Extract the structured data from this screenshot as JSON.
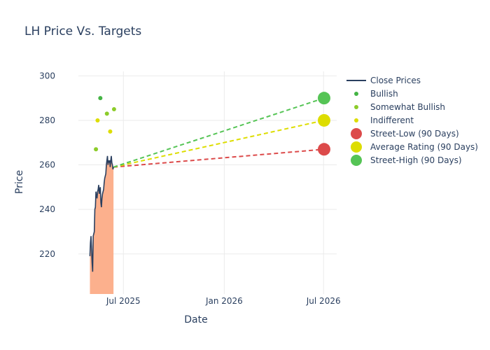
{
  "chart_data": {
    "type": "line",
    "title": "LH Price Vs. Targets",
    "xlabel": "Date",
    "ylabel": "Price",
    "x_ticks": [
      {
        "date": "2025-07-01",
        "label": "Jul 2025"
      },
      {
        "date": "2026-01-01",
        "label": "Jan 2026"
      },
      {
        "date": "2026-07-01",
        "label": "Jul 2026"
      }
    ],
    "y_ticks": [
      220,
      240,
      260,
      280,
      300
    ],
    "xlim": [
      "2025-04-10",
      "2026-07-25"
    ],
    "ylim": [
      202,
      302
    ],
    "grid": true,
    "legend_position": "right",
    "colors": {
      "close": "#2a3f5f",
      "area": "#fcb08d",
      "bullish": "#44b444",
      "somewhat_bullish": "#8ccc2a",
      "indifferent": "#dddd00",
      "low": "#dc4a4a",
      "avg": "#dddd00",
      "high": "#55c455",
      "grid": "#ebebeb",
      "text": "#2a3f5f"
    },
    "series": [
      {
        "name": "Close Prices",
        "kind": "line",
        "points": [
          [
            "2025-05-01",
            219
          ],
          [
            "2025-05-02",
            225
          ],
          [
            "2025-05-03",
            228
          ],
          [
            "2025-05-04",
            222
          ],
          [
            "2025-05-05",
            216
          ],
          [
            "2025-05-06",
            212
          ],
          [
            "2025-05-07",
            228
          ],
          [
            "2025-05-08",
            229
          ],
          [
            "2025-05-09",
            230
          ],
          [
            "2025-05-10",
            240
          ],
          [
            "2025-05-11",
            241
          ],
          [
            "2025-05-12",
            248
          ],
          [
            "2025-05-13",
            246
          ],
          [
            "2025-05-14",
            245
          ],
          [
            "2025-05-15",
            248
          ],
          [
            "2025-05-16",
            249
          ],
          [
            "2025-05-17",
            251
          ],
          [
            "2025-05-18",
            247
          ],
          [
            "2025-05-19",
            249
          ],
          [
            "2025-05-20",
            250
          ],
          [
            "2025-05-21",
            243
          ],
          [
            "2025-05-22",
            241
          ],
          [
            "2025-05-23",
            245
          ],
          [
            "2025-05-24",
            247
          ],
          [
            "2025-05-25",
            248
          ],
          [
            "2025-05-26",
            249
          ],
          [
            "2025-05-27",
            252
          ],
          [
            "2025-05-28",
            254
          ],
          [
            "2025-05-29",
            255
          ],
          [
            "2025-05-30",
            256
          ],
          [
            "2025-05-31",
            260
          ],
          [
            "2025-06-01",
            262
          ],
          [
            "2025-06-02",
            264
          ],
          [
            "2025-06-03",
            260
          ],
          [
            "2025-06-04",
            262
          ],
          [
            "2025-06-05",
            261
          ],
          [
            "2025-06-06",
            262
          ],
          [
            "2025-06-07",
            259
          ],
          [
            "2025-06-08",
            262
          ],
          [
            "2025-06-09",
            264
          ],
          [
            "2025-06-10",
            261
          ],
          [
            "2025-06-11",
            260
          ],
          [
            "2025-06-12",
            258
          ],
          [
            "2025-06-13",
            259
          ]
        ]
      },
      {
        "name": "Bullish",
        "kind": "markers",
        "points": [
          [
            "2025-05-20",
            290
          ]
        ]
      },
      {
        "name": "Somewhat Bullish",
        "kind": "markers",
        "points": [
          [
            "2025-05-12",
            267
          ],
          [
            "2025-06-01",
            283
          ],
          [
            "2025-06-14",
            285
          ]
        ]
      },
      {
        "name": "Indifferent",
        "kind": "markers",
        "points": [
          [
            "2025-05-15",
            280
          ],
          [
            "2025-06-07",
            275
          ]
        ]
      },
      {
        "name": "Street-Low (90 Days)",
        "kind": "target",
        "value": 267,
        "from": [
          "2025-06-13",
          259
        ],
        "date": "2026-07-02"
      },
      {
        "name": "Average Rating (90 Days)",
        "kind": "target",
        "value": 280,
        "from": [
          "2025-06-13",
          259
        ],
        "date": "2026-07-02"
      },
      {
        "name": "Street-High (90 Days)",
        "kind": "target",
        "value": 290,
        "from": [
          "2025-06-13",
          259
        ],
        "date": "2026-07-02"
      }
    ]
  }
}
